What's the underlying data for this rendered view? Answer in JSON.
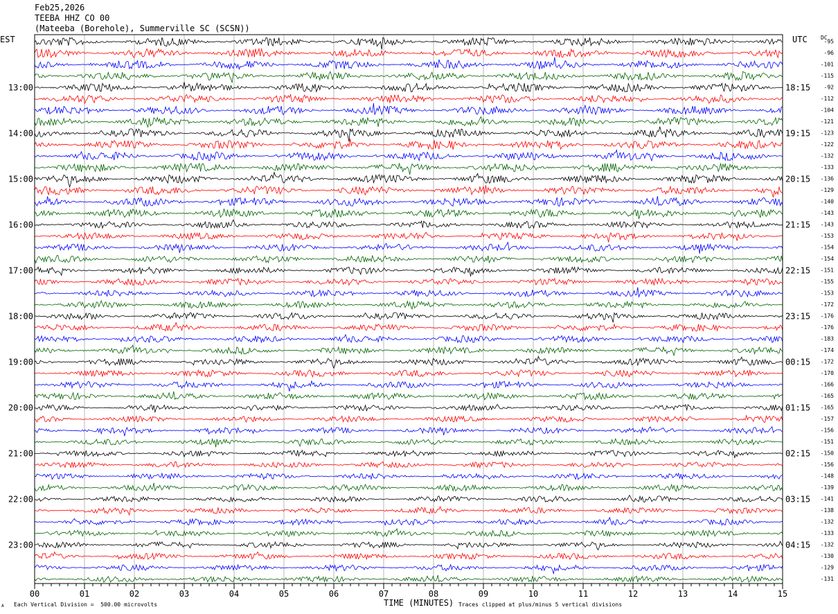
{
  "header": {
    "date": "Feb25,2026",
    "channel": "TEEBA HHZ CO 00",
    "station": "(Mateeba (Borehole), Summerville SC (SCSN))"
  },
  "left_timezone": "EST",
  "right_timezone": "UTC",
  "dc_label": "DC",
  "footer": {
    "scale_note": "Each Vertical Division =  500.00 microvolts",
    "clip_note": "Traces clipped at plus/minus 5 vertical divisions",
    "corner_mark": "A"
  },
  "colors": {
    "black": "#000000",
    "red": "#ff0000",
    "blue": "#0000ff",
    "green": "#006400",
    "grid": "#888888"
  },
  "chart_data": {
    "type": "line",
    "title": "TEEBA HHZ CO 00",
    "xlabel": "TIME (MINUTES)",
    "ylabel": "",
    "xlim": [
      0,
      15
    ],
    "x_ticks": [
      "00",
      "01",
      "02",
      "03",
      "04",
      "05",
      "06",
      "07",
      "08",
      "09",
      "10",
      "11",
      "12",
      "13",
      "14",
      "15"
    ],
    "trace_color_cycle": [
      "black",
      "red",
      "blue",
      "green"
    ],
    "trace_minutes": 15,
    "rows": 48,
    "left_hour_labels": [
      "13:00",
      "14:00",
      "15:00",
      "16:00",
      "17:00",
      "18:00",
      "19:00",
      "20:00",
      "21:00",
      "22:00",
      "23:00"
    ],
    "right_hour_labels": [
      "18:15",
      "19:15",
      "20:15",
      "21:15",
      "22:15",
      "23:15",
      "00:15",
      "01:15",
      "02:15",
      "03:15",
      "04:15"
    ],
    "dc_offsets": [
      -95,
      -96,
      -101,
      -115,
      -92,
      -112,
      -104,
      -121,
      -123,
      -122,
      -132,
      -133,
      -136,
      -129,
      -140,
      -143,
      -143,
      -153,
      -154,
      -154,
      -151,
      -155,
      -153,
      -172,
      -176,
      -176,
      -183,
      -174,
      -172,
      -170,
      -166,
      -165,
      -165,
      -157,
      -156,
      -151,
      -150,
      -156,
      -148,
      -139,
      -141,
      -138,
      -132,
      -133,
      -132,
      -130,
      -129,
      -131
    ]
  }
}
